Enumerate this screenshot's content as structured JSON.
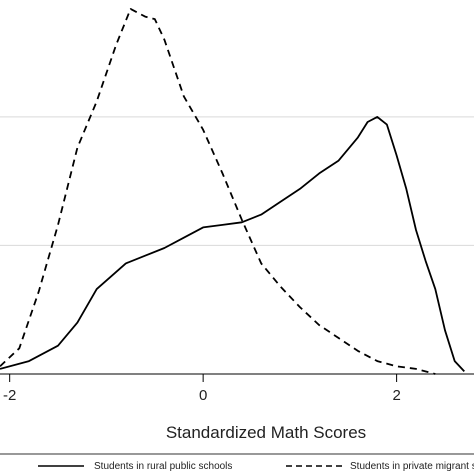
{
  "chart_data": {
    "type": "line",
    "title": "",
    "xlabel": "Standardized Math Scores",
    "ylabel": "",
    "xlim": [
      -2.1,
      2.8
    ],
    "ylim": [
      0,
      1.4
    ],
    "x_ticks": [
      -2,
      0,
      2
    ],
    "x_tick_labels": [
      "-2",
      "0",
      "2"
    ],
    "y_gridlines": [
      0.5,
      1.0
    ],
    "grid": "horizontal",
    "legend": "bottom",
    "series": [
      {
        "name": "Students in rural public schools",
        "style": "solid",
        "color": "#000000",
        "x": [
          -2.1,
          -1.8,
          -1.5,
          -1.3,
          -1.1,
          -0.95,
          -0.8,
          -0.6,
          -0.4,
          -0.2,
          0.0,
          0.2,
          0.4,
          0.6,
          0.8,
          1.0,
          1.2,
          1.4,
          1.6,
          1.7,
          1.8,
          1.9,
          2.0,
          2.1,
          2.2,
          2.3,
          2.4,
          2.5,
          2.6,
          2.7
        ],
        "values": [
          0.02,
          0.05,
          0.11,
          0.2,
          0.33,
          0.38,
          0.43,
          0.46,
          0.49,
          0.53,
          0.57,
          0.58,
          0.59,
          0.62,
          0.67,
          0.72,
          0.78,
          0.83,
          0.92,
          0.98,
          1.0,
          0.97,
          0.85,
          0.72,
          0.56,
          0.44,
          0.33,
          0.17,
          0.05,
          0.01
        ]
      },
      {
        "name": "Students in private migrant schools",
        "style": "dashed",
        "color": "#000000",
        "x": [
          -2.1,
          -1.9,
          -1.7,
          -1.5,
          -1.3,
          -1.1,
          -0.9,
          -0.75,
          -0.6,
          -0.5,
          -0.4,
          -0.2,
          0.0,
          0.2,
          0.4,
          0.6,
          0.8,
          1.0,
          1.2,
          1.4,
          1.6,
          1.8,
          2.0,
          2.2,
          2.4
        ],
        "values": [
          0.03,
          0.1,
          0.32,
          0.58,
          0.88,
          1.06,
          1.28,
          1.42,
          1.39,
          1.38,
          1.3,
          1.08,
          0.95,
          0.78,
          0.6,
          0.43,
          0.34,
          0.26,
          0.19,
          0.14,
          0.09,
          0.05,
          0.03,
          0.02,
          0.0
        ]
      }
    ]
  }
}
